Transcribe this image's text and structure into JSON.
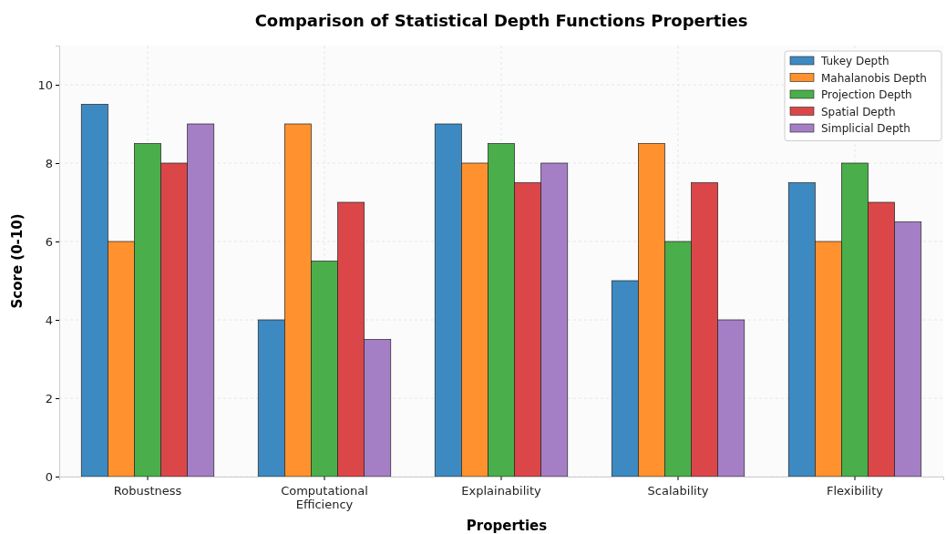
{
  "chart_data": {
    "type": "bar",
    "title": "Comparison of Statistical Depth Functions Properties",
    "xlabel": "Properties",
    "ylabel": "Score (0-10)",
    "categories": [
      "Robustness",
      "Computational\nEfficiency",
      "Explainability",
      "Scalability",
      "Flexibility"
    ],
    "series": [
      {
        "name": "Tukey Depth",
        "color": "#3d8ac2",
        "values": [
          9.5,
          4,
          9,
          5,
          7.5
        ]
      },
      {
        "name": "Mahalanobis Depth",
        "color": "#ff922f",
        "values": [
          6,
          9,
          8,
          8.5,
          6
        ]
      },
      {
        "name": "Projection Depth",
        "color": "#4aae4a",
        "values": [
          8.5,
          5.5,
          8.5,
          6,
          8
        ]
      },
      {
        "name": "Spatial Depth",
        "color": "#db4749",
        "values": [
          8,
          7,
          7.5,
          7.5,
          7
        ]
      },
      {
        "name": "Simplicial Depth",
        "color": "#a57fc6",
        "values": [
          9,
          3.5,
          8,
          4,
          6.5
        ]
      }
    ],
    "ylim": [
      0,
      11
    ],
    "yticks": [
      0,
      2,
      4,
      6,
      8,
      10
    ],
    "grid": true,
    "legend": "top right"
  }
}
